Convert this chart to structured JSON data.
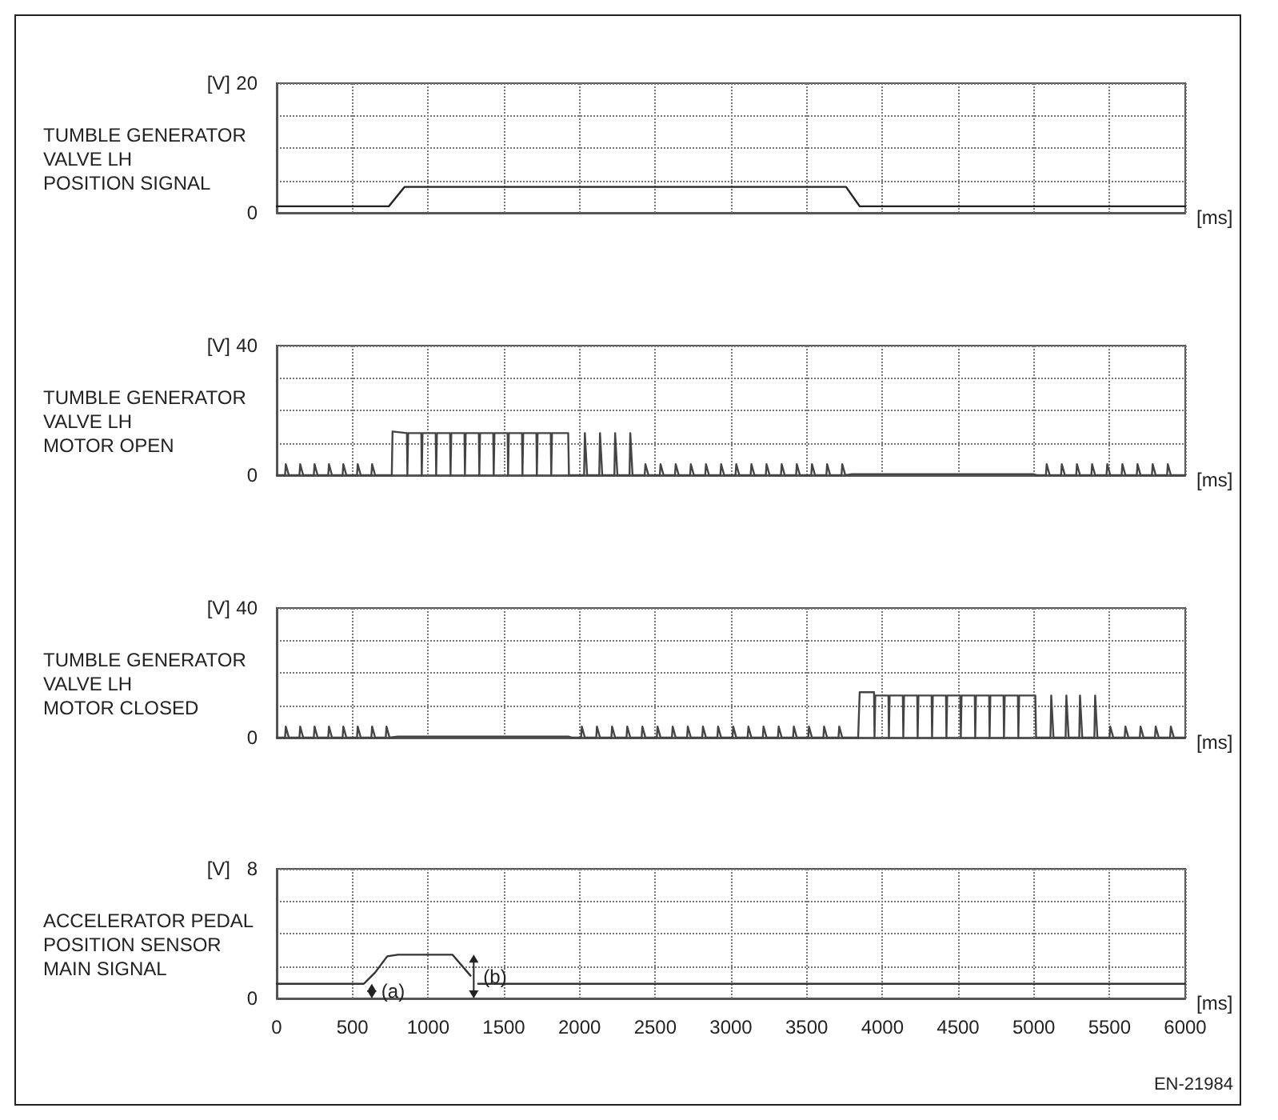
{
  "chart_data": [
    {
      "type": "line",
      "title": "TUMBLE GENERATOR\nVALVE LH\nPOSITION SIGNAL",
      "ylabel": "[V]",
      "xlabel": "[ms]",
      "xlim": [
        0,
        6000
      ],
      "ylim": [
        0,
        20
      ],
      "xticks": [
        0,
        500,
        1000,
        1500,
        2000,
        2500,
        3000,
        3500,
        4000,
        4500,
        5000,
        5500,
        6000
      ],
      "yticks": [
        0,
        {
          "value": 5,
          "label": null
        },
        {
          "value": 10,
          "label": null
        },
        {
          "value": 15,
          "label": null
        },
        20
      ],
      "tick_labels": "y",
      "grid": true,
      "marker": "none",
      "line_style": "solid",
      "x": [
        0,
        740,
        845,
        3760,
        3850,
        6000
      ],
      "series": [
        {
          "color": "#222222",
          "values": [
            1,
            1,
            4,
            4,
            1,
            1
          ]
        }
      ]
    },
    {
      "type": "line",
      "title": "TUMBLE GENERATOR\nVALVE LH\nMOTOR OPEN",
      "ylabel": "[V]",
      "xlabel": "[ms]",
      "xlim": [
        0,
        6000
      ],
      "ylim": [
        0,
        40
      ],
      "xticks": [
        0,
        500,
        1000,
        1500,
        2000,
        2500,
        3000,
        3500,
        4000,
        4500,
        5000,
        5500,
        6000
      ],
      "yticks": [
        0,
        {
          "value": 10,
          "label": null
        },
        {
          "value": 20,
          "label": null
        },
        {
          "value": 30,
          "label": null
        },
        40
      ],
      "tick_labels": "y",
      "grid": true,
      "marker": "none",
      "line_style": "solid",
      "x": [
        0,
        55,
        60,
        80,
        150,
        155,
        175,
        245,
        250,
        270,
        340,
        345,
        365,
        435,
        440,
        460,
        530,
        535,
        555,
        625,
        630,
        650,
        760,
        765,
        860,
        863,
        868,
        955,
        958,
        963,
        1050,
        1053,
        1058,
        1145,
        1148,
        1153,
        1240,
        1243,
        1248,
        1335,
        1338,
        1343,
        1430,
        1433,
        1438,
        1525,
        1528,
        1533,
        1620,
        1623,
        1628,
        1715,
        1718,
        1723,
        1810,
        1813,
        1818,
        1925,
        1930,
        2030,
        2035,
        2050,
        2130,
        2135,
        2150,
        2230,
        2235,
        2250,
        2330,
        2335,
        2350,
        2430,
        2435,
        2455,
        2530,
        2535,
        2555,
        2630,
        2635,
        2655,
        2730,
        2735,
        2755,
        2830,
        2835,
        2855,
        2930,
        2935,
        2955,
        3030,
        3035,
        3055,
        3130,
        3135,
        3155,
        3230,
        3235,
        3255,
        3330,
        3335,
        3355,
        3430,
        3435,
        3455,
        3530,
        3535,
        3555,
        3630,
        3635,
        3655,
        3730,
        3735,
        3755,
        3800,
        5000,
        5020,
        5080,
        5085,
        5105,
        5180,
        5185,
        5205,
        5280,
        5285,
        5305,
        5380,
        5385,
        5405,
        5480,
        5485,
        5505,
        5580,
        5585,
        5605,
        5680,
        5685,
        5705,
        5780,
        5785,
        5805,
        5880,
        5885,
        5905,
        6000
      ],
      "series": [
        {
          "color": "#444444",
          "values": [
            0,
            0,
            3.4,
            0,
            0,
            3.4,
            0,
            0,
            3.4,
            0,
            0,
            3.4,
            0,
            0,
            3.4,
            0,
            0,
            3.4,
            0,
            0,
            3.4,
            0,
            0,
            13.5,
            13,
            0,
            13,
            13,
            0,
            13,
            13,
            0,
            13,
            13,
            0,
            13,
            13,
            0,
            13,
            13,
            0,
            13,
            13,
            0,
            13,
            13,
            0,
            13,
            13,
            0,
            13,
            13,
            0,
            13,
            13,
            0,
            13,
            13,
            0,
            0,
            13,
            0,
            0,
            13,
            0,
            0,
            13,
            0,
            0,
            13,
            0,
            0,
            3.4,
            0,
            0,
            3.4,
            0,
            0,
            3.4,
            0,
            0,
            3.4,
            0,
            0,
            3.4,
            0,
            0,
            3.4,
            0,
            0,
            3.4,
            0,
            0,
            3.4,
            0,
            0,
            3.4,
            0,
            0,
            3.4,
            0,
            0,
            3.4,
            0,
            0,
            3.4,
            0,
            0,
            3.4,
            0,
            0,
            3.4,
            0,
            0.3,
            0.3,
            0,
            0,
            3.4,
            0,
            0,
            3.4,
            0,
            0,
            3.4,
            0,
            0,
            3.4,
            0,
            0,
            3.4,
            0,
            0,
            3.4,
            0,
            0,
            3.4,
            0,
            0,
            3.4,
            0,
            0,
            3.4,
            0,
            0
          ]
        }
      ]
    },
    {
      "type": "line",
      "title": "TUMBLE GENERATOR\nVALVE LH\nMOTOR CLOSED",
      "ylabel": "[V]",
      "xlabel": "[ms]",
      "xlim": [
        0,
        6000
      ],
      "ylim": [
        0,
        40
      ],
      "xticks": [
        0,
        500,
        1000,
        1500,
        2000,
        2500,
        3000,
        3500,
        4000,
        4500,
        5000,
        5500,
        6000
      ],
      "yticks": [
        0,
        {
          "value": 10,
          "label": null
        },
        {
          "value": 20,
          "label": null
        },
        {
          "value": 30,
          "label": null
        },
        40
      ],
      "tick_labels": "y",
      "grid": true,
      "marker": "none",
      "line_style": "solid",
      "x": [
        0,
        55,
        60,
        80,
        150,
        155,
        175,
        245,
        250,
        270,
        340,
        345,
        365,
        435,
        440,
        460,
        530,
        535,
        555,
        625,
        630,
        650,
        720,
        725,
        745,
        800,
        1930,
        1950,
        2010,
        2015,
        2035,
        2110,
        2115,
        2135,
        2210,
        2215,
        2235,
        2310,
        2315,
        2335,
        2410,
        2415,
        2435,
        2510,
        2515,
        2535,
        2610,
        2615,
        2635,
        2710,
        2715,
        2735,
        2810,
        2815,
        2835,
        2910,
        2915,
        2935,
        3010,
        3015,
        3035,
        3110,
        3115,
        3135,
        3210,
        3215,
        3235,
        3310,
        3315,
        3335,
        3410,
        3415,
        3435,
        3510,
        3515,
        3535,
        3610,
        3615,
        3635,
        3710,
        3715,
        3735,
        3840,
        3850,
        3945,
        3948,
        3953,
        4040,
        4043,
        4048,
        4135,
        4138,
        4143,
        4230,
        4233,
        4238,
        4325,
        4328,
        4333,
        4420,
        4423,
        4428,
        4515,
        4518,
        4523,
        4610,
        4613,
        4618,
        4705,
        4708,
        4713,
        4800,
        4803,
        4808,
        4895,
        4898,
        4903,
        5010,
        5015,
        5110,
        5115,
        5130,
        5210,
        5215,
        5230,
        5300,
        5305,
        5320,
        5400,
        5405,
        5420,
        5500,
        5505,
        5525,
        5600,
        5605,
        5625,
        5700,
        5705,
        5725,
        5800,
        5805,
        5825,
        5900,
        5905,
        5925,
        6000
      ],
      "series": [
        {
          "color": "#444444",
          "values": [
            0,
            0,
            3.4,
            0,
            0,
            3.4,
            0,
            0,
            3.4,
            0,
            0,
            3.4,
            0,
            0,
            3.4,
            0,
            0,
            3.4,
            0,
            0,
            3.4,
            0,
            0,
            3.4,
            0,
            0.3,
            0.3,
            0,
            0,
            3.4,
            0,
            0,
            3.4,
            0,
            0,
            3.4,
            0,
            0,
            3.4,
            0,
            0,
            3.4,
            0,
            0,
            3.4,
            0,
            0,
            3.4,
            0,
            0,
            3.4,
            0,
            0,
            3.4,
            0,
            0,
            3.4,
            0,
            0,
            3.4,
            0,
            0,
            3.4,
            0,
            0,
            3.4,
            0,
            0,
            3.4,
            0,
            0,
            3.4,
            0,
            0,
            3.4,
            0,
            0,
            3.4,
            0,
            0,
            3.4,
            0,
            0,
            14,
            14,
            0,
            13,
            13,
            0,
            13,
            13,
            0,
            13,
            13,
            0,
            13,
            13,
            0,
            13,
            13,
            0,
            13,
            13,
            0,
            13,
            13,
            0,
            13,
            13,
            0,
            13,
            13,
            0,
            13,
            13,
            0,
            13,
            13,
            0,
            0,
            13,
            0,
            0,
            13,
            0,
            0,
            13,
            0,
            0,
            13,
            0,
            0,
            3.4,
            0,
            0,
            3.4,
            0,
            0,
            3.4,
            0,
            0,
            3.4,
            0,
            0,
            3.4,
            0,
            0
          ]
        }
      ]
    },
    {
      "type": "line",
      "title": "ACCELERATOR PEDAL\nPOSITION SENSOR\nMAIN SIGNAL",
      "ylabel": "[V]",
      "xlabel": "[ms]",
      "xlim": [
        0,
        6000
      ],
      "ylim": [
        0,
        8
      ],
      "xticks": [
        0,
        500,
        1000,
        1500,
        2000,
        2500,
        3000,
        3500,
        4000,
        4500,
        5000,
        5500,
        6000
      ],
      "yticks": [
        0,
        {
          "value": 2,
          "label": null
        },
        {
          "value": 4,
          "label": null
        },
        {
          "value": 6,
          "label": null
        },
        8
      ],
      "grid": true,
      "marker": "none",
      "line_style": "solid",
      "x": [
        0,
        575,
        650,
        730,
        800,
        1050,
        1160,
        1280,
        1300,
        1330,
        6000
      ],
      "series": [
        {
          "color": "#333333",
          "values": [
            0.9,
            0.9,
            1.6,
            2.6,
            2.7,
            2.7,
            2.7,
            1.4,
            null,
            0.9,
            0.9
          ]
        }
      ],
      "annotations": [
        "(a)",
        "(b)",
        "EN-21984"
      ]
    }
  ]
}
